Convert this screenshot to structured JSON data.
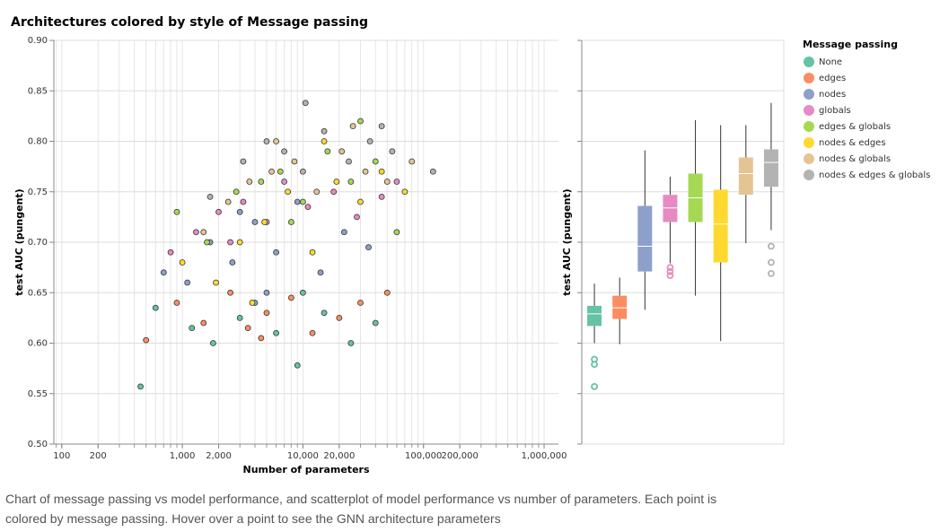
{
  "chart_data": [
    {
      "type": "scatter",
      "title": "Architectures colored by style of Message passing",
      "xlabel": "Number of parameters",
      "ylabel": "test AUC (pungent)",
      "xscale": "log",
      "grid": true,
      "xlim": [
        86,
        1315000
      ],
      "xticks": [
        100,
        200,
        {
          "value": 1000,
          "label": "1,000"
        },
        {
          "value": 2000,
          "label": "2,000"
        },
        {
          "value": 10000,
          "label": "10,000"
        },
        {
          "value": 20000,
          "label": "20,000"
        },
        {
          "value": 100000,
          "label": "100,000"
        },
        {
          "value": 200000,
          "label": "200,000"
        },
        {
          "value": 1000000,
          "label": "1,000,000"
        }
      ],
      "ylim": [
        0.5,
        0.9
      ],
      "yticks": [
        {
          "value": 0.5,
          "label": "0.50"
        },
        0.55,
        {
          "value": 0.6,
          "label": "0.60"
        },
        0.65,
        {
          "value": 0.7,
          "label": "0.70"
        },
        0.75,
        {
          "value": 0.8,
          "label": "0.80"
        },
        0.85,
        {
          "value": 0.9,
          "label": "0.90"
        }
      ],
      "legend_title": "Message passing",
      "series": [
        {
          "name": "None",
          "color": "#66c2a5",
          "x": [
            450,
            600,
            1200,
            1800,
            3000,
            4000,
            6000,
            9000,
            15000,
            25000,
            40000,
            10000
          ],
          "values": [
            0.557,
            0.635,
            0.615,
            0.6,
            0.625,
            0.64,
            0.61,
            0.578,
            0.63,
            0.6,
            0.62,
            0.65
          ]
        },
        {
          "name": "edges",
          "color": "#fc8d62",
          "x": [
            500,
            900,
            1500,
            2500,
            3500,
            5000,
            8000,
            12000,
            20000,
            30000,
            50000,
            4500
          ],
          "values": [
            0.603,
            0.64,
            0.62,
            0.65,
            0.615,
            0.63,
            0.645,
            0.61,
            0.625,
            0.64,
            0.65,
            0.605
          ]
        },
        {
          "name": "nodes",
          "color": "#8da0cb",
          "x": [
            700,
            1100,
            1700,
            2600,
            4000,
            6000,
            9000,
            14000,
            22000,
            35000,
            5000,
            3000
          ],
          "values": [
            0.67,
            0.66,
            0.7,
            0.68,
            0.72,
            0.69,
            0.74,
            0.67,
            0.71,
            0.695,
            0.65,
            0.73
          ]
        },
        {
          "name": "globals",
          "color": "#e78ac3",
          "x": [
            800,
            1300,
            2000,
            3200,
            5000,
            7000,
            11000,
            18000,
            28000,
            45000,
            2500,
            60000
          ],
          "values": [
            0.69,
            0.71,
            0.73,
            0.74,
            0.72,
            0.76,
            0.735,
            0.75,
            0.725,
            0.745,
            0.7,
            0.76
          ]
        },
        {
          "name": "edges & globals",
          "color": "#a6d854",
          "x": [
            900,
            1600,
            2800,
            4500,
            6500,
            10000,
            16000,
            25000,
            40000,
            60000,
            30000,
            8000
          ],
          "values": [
            0.73,
            0.7,
            0.75,
            0.76,
            0.77,
            0.74,
            0.79,
            0.76,
            0.78,
            0.71,
            0.82,
            0.72
          ]
        },
        {
          "name": "nodes & edges",
          "color": "#ffd92f",
          "x": [
            1000,
            1900,
            3000,
            4800,
            7500,
            12000,
            19000,
            30000,
            45000,
            70000,
            3800,
            15000
          ],
          "values": [
            0.68,
            0.66,
            0.7,
            0.72,
            0.75,
            0.69,
            0.76,
            0.74,
            0.77,
            0.75,
            0.64,
            0.8
          ]
        },
        {
          "name": "nodes & globals",
          "color": "#e5c494",
          "x": [
            1500,
            2400,
            3600,
            5500,
            8500,
            13000,
            21000,
            33000,
            50000,
            80000,
            6000,
            26000
          ],
          "values": [
            0.71,
            0.74,
            0.76,
            0.77,
            0.78,
            0.75,
            0.79,
            0.77,
            0.76,
            0.78,
            0.8,
            0.815
          ]
        },
        {
          "name": "nodes & edges & globals",
          "color": "#b3b3b3",
          "x": [
            1700,
            3200,
            5000,
            7000,
            10000,
            15000,
            24000,
            36000,
            55000,
            120000,
            10500,
            45000
          ],
          "values": [
            0.745,
            0.78,
            0.8,
            0.79,
            0.77,
            0.81,
            0.78,
            0.8,
            0.79,
            0.77,
            0.838,
            0.815
          ]
        }
      ]
    },
    {
      "type": "box",
      "ylabel": "test AUC (pungent)",
      "ylim": [
        0.5,
        0.9
      ],
      "yticks": [
        0.5,
        0.55,
        0.6,
        0.65,
        0.7,
        0.75,
        0.8,
        0.85,
        0.9
      ],
      "grid": true,
      "whisker_low": [
        0.6,
        0.599,
        0.633,
        0.679,
        0.647,
        0.602,
        0.699,
        0.712
      ],
      "q1": [
        0.617,
        0.624,
        0.671,
        0.72,
        0.72,
        0.68,
        0.747,
        0.755
      ],
      "median": [
        0.629,
        0.635,
        0.696,
        0.734,
        0.744,
        0.718,
        0.768,
        0.779
      ],
      "q3": [
        0.637,
        0.647,
        0.736,
        0.747,
        0.768,
        0.752,
        0.784,
        0.792
      ],
      "whisker_high": [
        0.659,
        0.665,
        0.791,
        0.765,
        0.821,
        0.816,
        0.816,
        0.838
      ],
      "outliers": [
        [
          0.584,
          0.579,
          0.557
        ],
        [],
        [],
        [
          0.675,
          0.671,
          0.667
        ],
        [],
        [],
        [],
        [
          0.696,
          0.68,
          0.669
        ]
      ]
    }
  ],
  "caption": "Chart of message passing vs model performance, and scatterplot of model performance vs number of parameters. Each point is colored by message passing. Hover over a point to see the GNN architecture parameters"
}
